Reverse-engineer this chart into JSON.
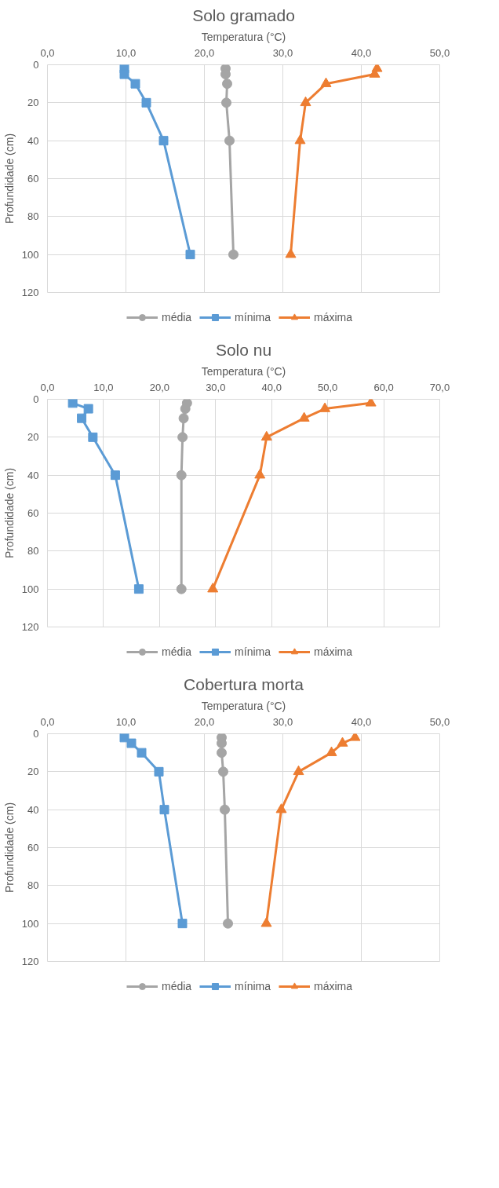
{
  "chart_data": [
    {
      "type": "line",
      "title": "Solo gramado",
      "xlabel": "Temperatura (°C)",
      "ylabel": "Profundidade (cm)",
      "xlim": [
        0,
        50
      ],
      "xticks": [
        {
          "value": 0,
          "label": "0,0"
        },
        {
          "value": 10,
          "label": "10,0"
        },
        {
          "value": 20,
          "label": "20,0"
        },
        {
          "value": 30,
          "label": "30,0"
        },
        {
          "value": 40,
          "label": "40,0"
        },
        {
          "value": 50,
          "label": "50,0"
        }
      ],
      "ylim": [
        120,
        0
      ],
      "yticks": [
        0,
        20,
        40,
        60,
        80,
        100,
        120
      ],
      "grid": true,
      "legend": "bottom",
      "series": [
        {
          "name": "média",
          "color": "#a5a5a5",
          "marker": "circle",
          "x": [
            22.7,
            22.7,
            22.9,
            22.8,
            23.2,
            23.7
          ],
          "values": [
            2,
            5,
            10,
            20,
            40,
            100
          ]
        },
        {
          "name": "mínima",
          "color": "#5b9bd5",
          "marker": "square",
          "x": [
            9.8,
            9.8,
            11.2,
            12.6,
            14.8,
            18.2
          ],
          "values": [
            2,
            5,
            10,
            20,
            40,
            100
          ]
        },
        {
          "name": "máxima",
          "color": "#ed7d31",
          "marker": "triangle",
          "x": [
            42.0,
            41.7,
            35.5,
            32.9,
            32.2,
            31.0
          ],
          "values": [
            2,
            5,
            10,
            20,
            40,
            100
          ]
        }
      ]
    },
    {
      "type": "line",
      "title": "Solo nu",
      "xlabel": "Temperatura (°C)",
      "ylabel": "Profundidade (cm)",
      "xlim": [
        0,
        70
      ],
      "xticks": [
        {
          "value": 0,
          "label": "0,0"
        },
        {
          "value": 10,
          "label": "10,0"
        },
        {
          "value": 20,
          "label": "20,0"
        },
        {
          "value": 30,
          "label": "30,0"
        },
        {
          "value": 40,
          "label": "40,0"
        },
        {
          "value": 50,
          "label": "50,0"
        },
        {
          "value": 60,
          "label": "60,0"
        },
        {
          "value": 70,
          "label": "70,0"
        }
      ],
      "ylim": [
        120,
        0
      ],
      "yticks": [
        0,
        20,
        40,
        60,
        80,
        100,
        120
      ],
      "grid": true,
      "legend": "bottom",
      "series": [
        {
          "name": "média",
          "color": "#a5a5a5",
          "marker": "circle",
          "x": [
            24.9,
            24.6,
            24.3,
            24.1,
            23.9,
            23.9
          ],
          "values": [
            2,
            5,
            10,
            20,
            40,
            100
          ]
        },
        {
          "name": "mínima",
          "color": "#5b9bd5",
          "marker": "square",
          "x": [
            4.5,
            7.3,
            6.1,
            8.1,
            12.1,
            16.3
          ],
          "values": [
            2,
            5,
            10,
            20,
            40,
            100
          ]
        },
        {
          "name": "máxima",
          "color": "#ed7d31",
          "marker": "triangle",
          "x": [
            57.7,
            49.5,
            45.8,
            39.1,
            37.9,
            29.5
          ],
          "values": [
            2,
            5,
            10,
            20,
            40,
            100
          ]
        }
      ]
    },
    {
      "type": "line",
      "title": "Cobertura morta",
      "xlabel": "Temperatura (°C)",
      "ylabel": "Profundidade (cm)",
      "xlim": [
        0,
        50
      ],
      "xticks": [
        {
          "value": 0,
          "label": "0,0"
        },
        {
          "value": 10,
          "label": "10,0"
        },
        {
          "value": 20,
          "label": "20,0"
        },
        {
          "value": 30,
          "label": "30,0"
        },
        {
          "value": 40,
          "label": "40,0"
        },
        {
          "value": 50,
          "label": "50,0"
        }
      ],
      "ylim": [
        120,
        0
      ],
      "yticks": [
        0,
        20,
        40,
        60,
        80,
        100,
        120
      ],
      "grid": true,
      "legend": "bottom",
      "series": [
        {
          "name": "média",
          "color": "#a5a5a5",
          "marker": "circle",
          "x": [
            22.2,
            22.2,
            22.2,
            22.4,
            22.6,
            23.0
          ],
          "values": [
            2,
            5,
            10,
            20,
            40,
            100
          ]
        },
        {
          "name": "mínima",
          "color": "#5b9bd5",
          "marker": "square",
          "x": [
            9.8,
            10.7,
            12.0,
            14.2,
            14.9,
            17.2
          ],
          "values": [
            2,
            5,
            10,
            20,
            40,
            100
          ]
        },
        {
          "name": "máxima",
          "color": "#ed7d31",
          "marker": "triangle",
          "x": [
            39.2,
            37.6,
            36.2,
            32.0,
            29.8,
            27.9
          ],
          "values": [
            2,
            5,
            10,
            20,
            40,
            100
          ]
        }
      ]
    }
  ]
}
